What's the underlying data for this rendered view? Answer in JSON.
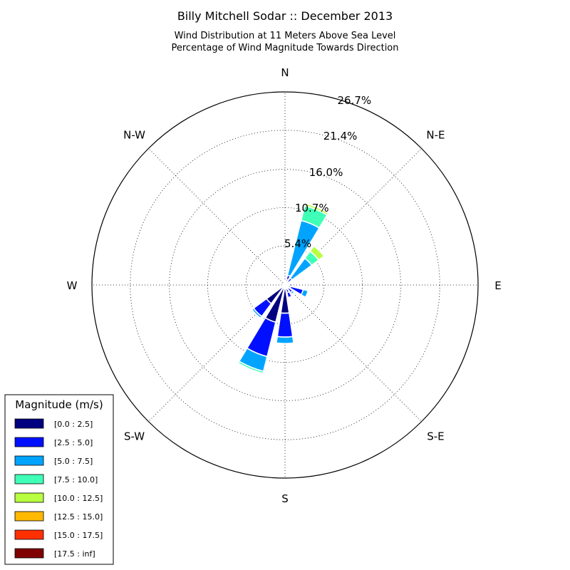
{
  "chart_data": {
    "type": "windrose",
    "title": "Billy Mitchell Sodar :: December 2013",
    "subtitle_lines": [
      "Wind Distribution at 11 Meters Above Sea Level",
      "Percentage of Wind Magnitude Towards Direction"
    ],
    "directions": [
      "N",
      "N-E",
      "E",
      "S-E",
      "S",
      "S-W",
      "W",
      "N-W"
    ],
    "radial_ticks": [
      "5.4%",
      "10.7%",
      "16.0%",
      "21.4%",
      "26.7%"
    ],
    "radial_tick_values": [
      5.4,
      10.7,
      16.0,
      21.4,
      26.7
    ],
    "rmax": 26.7,
    "legend": {
      "title": "Magnitude (m/s)",
      "bins": [
        "[0.0 : 2.5]",
        "[2.5 : 5.0]",
        "[5.0 : 7.5]",
        "[7.5 : 10.0]",
        "[10.0 : 12.5]",
        "[12.5 : 15.0]",
        "[15.0 : 17.5]",
        "[17.5 : inf]"
      ],
      "colors": [
        "#000080",
        "#0010ff",
        "#00a4ff",
        "#40ffb7",
        "#b7ff40",
        "#ffb900",
        "#ff3000",
        "#800000"
      ]
    },
    "sectors": [
      {
        "direction_deg": 0,
        "values": [
          0.3,
          0.3,
          0.0,
          0.0,
          0.0,
          0.0,
          0.0,
          0.0
        ]
      },
      {
        "direction_deg": 22.5,
        "values": [
          0.8,
          0.6,
          7.8,
          2.1,
          0.3,
          0.0,
          0.0,
          0.0
        ]
      },
      {
        "direction_deg": 45,
        "values": [
          0.3,
          0.9,
          3.4,
          1.2,
          0.9,
          0.0,
          0.0,
          0.0
        ]
      },
      {
        "direction_deg": 67.5,
        "values": [
          0.5,
          0.2,
          0.1,
          0.0,
          0.0,
          0.0,
          0.0,
          0.0
        ]
      },
      {
        "direction_deg": 90,
        "values": [
          0.6,
          0.4,
          0.1,
          0.0,
          0.0,
          0.0,
          0.0,
          0.0
        ]
      },
      {
        "direction_deg": 112.5,
        "values": [
          0.8,
          1.8,
          0.7,
          0.1,
          0.0,
          0.0,
          0.0,
          0.0
        ]
      },
      {
        "direction_deg": 135,
        "values": [
          0.6,
          0.7,
          0.3,
          0.0,
          0.0,
          0.0,
          0.0,
          0.0
        ]
      },
      {
        "direction_deg": 157.5,
        "values": [
          1.1,
          0.7,
          0.1,
          0.0,
          0.0,
          0.0,
          0.0,
          0.0
        ]
      },
      {
        "direction_deg": 180,
        "values": [
          3.9,
          3.3,
          0.9,
          0.0,
          0.0,
          0.0,
          0.0,
          0.0
        ]
      },
      {
        "direction_deg": 202.5,
        "values": [
          5.3,
          4.9,
          2.1,
          0.3,
          0.0,
          0.0,
          0.0,
          0.0
        ]
      },
      {
        "direction_deg": 225,
        "values": [
          3.2,
          2.2,
          0.3,
          0.1,
          0.0,
          0.0,
          0.0,
          0.0
        ]
      },
      {
        "direction_deg": 247.5,
        "values": [
          0.4,
          0.1,
          0.0,
          0.0,
          0.0,
          0.0,
          0.0,
          0.0
        ]
      },
      {
        "direction_deg": 270,
        "values": [
          0.2,
          0.1,
          0.0,
          0.0,
          0.0,
          0.0,
          0.0,
          0.0
        ]
      },
      {
        "direction_deg": 292.5,
        "values": [
          0.2,
          0.1,
          0.0,
          0.0,
          0.0,
          0.0,
          0.0,
          0.0
        ]
      },
      {
        "direction_deg": 315,
        "values": [
          0.1,
          0.1,
          0.0,
          0.0,
          0.0,
          0.0,
          0.0,
          0.0
        ]
      },
      {
        "direction_deg": 337.5,
        "values": [
          0.1,
          0.1,
          0.0,
          0.0,
          0.0,
          0.0,
          0.0,
          0.0
        ]
      }
    ],
    "grid": true,
    "legend_position": "bottom-left"
  }
}
